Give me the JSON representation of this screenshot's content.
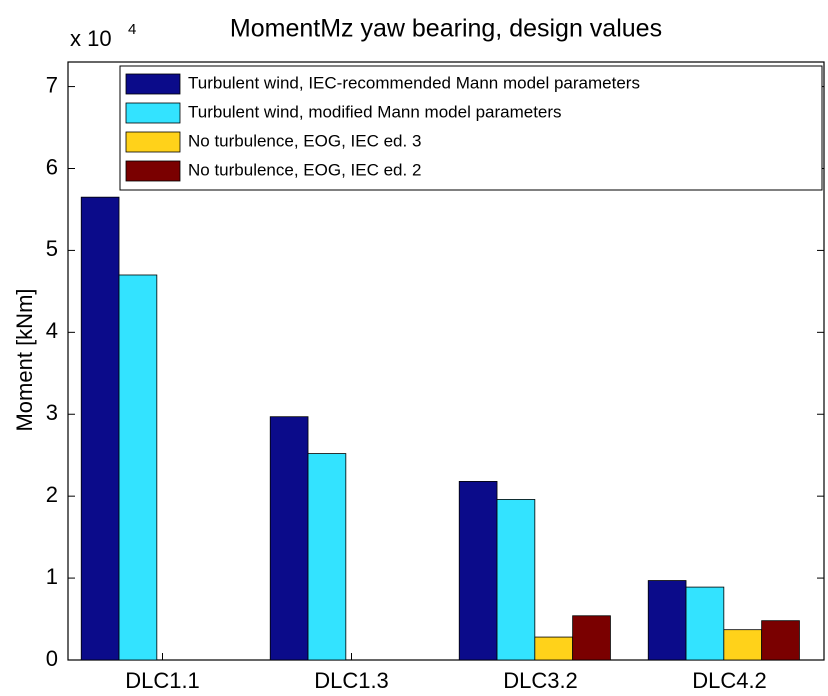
{
  "chart_data": {
    "type": "bar",
    "title": "MomentMz  yaw bearing, design values",
    "multiplier_base": "x 10",
    "multiplier_exponent": "4",
    "ylabel": "Moment [kNm]",
    "categories": [
      "DLC1.1",
      "DLC1.3",
      "DLC3.2",
      "DLC4.2"
    ],
    "series": [
      {
        "name": "Turbulent wind, IEC-recommended Mann model parameters",
        "color": "#0b0b8a",
        "values": [
          5.65,
          2.97,
          2.18,
          0.97
        ]
      },
      {
        "name": "Turbulent wind, modified Mann model parameters",
        "color": "#33e3ff",
        "values": [
          4.7,
          2.52,
          1.96,
          0.89
        ]
      },
      {
        "name": "No turbulence, EOG, IEC ed. 3",
        "color": "#ffd21a",
        "values": [
          0,
          0,
          0.28,
          0.37
        ]
      },
      {
        "name": "No turbulence, EOG, IEC ed. 2",
        "color": "#7a0000",
        "values": [
          0,
          0,
          0.54,
          0.48
        ]
      }
    ],
    "ylim": [
      0,
      7.3
    ],
    "yticks": [
      0,
      1,
      2,
      3,
      4,
      5,
      6,
      7
    ],
    "legend": "upper right"
  }
}
